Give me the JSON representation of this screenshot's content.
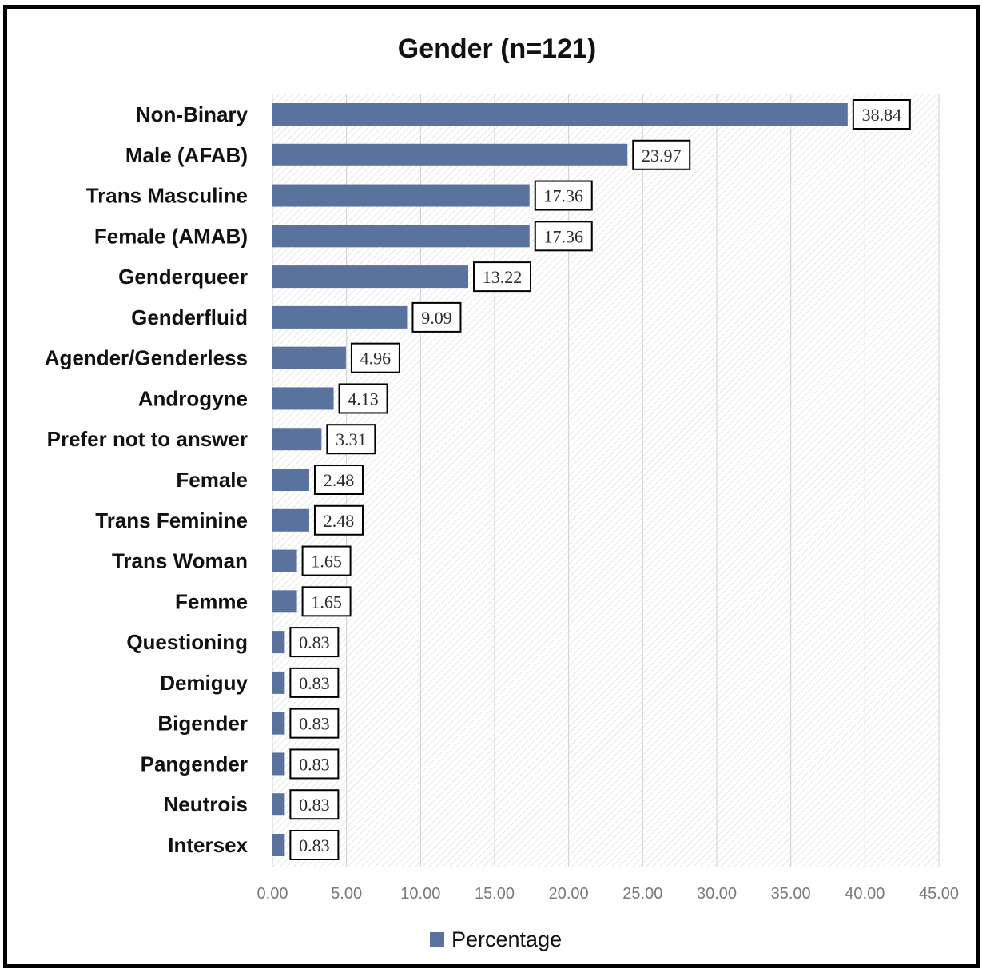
{
  "chart_data": {
    "type": "bar",
    "orientation": "horizontal",
    "title": "Gender (n=121)",
    "categories": [
      "Non-Binary",
      "Male (AFAB)",
      "Trans Masculine",
      "Female (AMAB)",
      "Genderqueer",
      "Genderfluid",
      "Agender/Genderless",
      "Androgyne",
      "Prefer not to answer",
      "Female",
      "Trans Feminine",
      "Trans Woman",
      "Femme",
      "Questioning",
      "Demiguy",
      "Bigender",
      "Pangender",
      "Neutrois",
      "Intersex"
    ],
    "series": [
      {
        "name": "Percentage",
        "values": [
          38.84,
          23.97,
          17.36,
          17.36,
          13.22,
          9.09,
          4.96,
          4.13,
          3.31,
          2.48,
          2.48,
          1.65,
          1.65,
          0.83,
          0.83,
          0.83,
          0.83,
          0.83,
          0.83
        ],
        "data_labels": [
          "38.84",
          "23.97",
          "17.36",
          "17.36",
          "13.22",
          "9.09",
          "4.96",
          "4.13",
          "3.31",
          "2.48",
          "2.48",
          "1.65",
          "1.65",
          "0.83",
          "0.83",
          "0.83",
          "0.83",
          "0.83",
          "0.83"
        ],
        "color": "#5a739e"
      }
    ],
    "xlim": [
      0,
      45
    ],
    "xticks": [
      "0.00",
      "5.00",
      "10.00",
      "15.00",
      "20.00",
      "25.00",
      "30.00",
      "35.00",
      "40.00",
      "45.00"
    ],
    "grid": true,
    "legend": "bottom"
  }
}
